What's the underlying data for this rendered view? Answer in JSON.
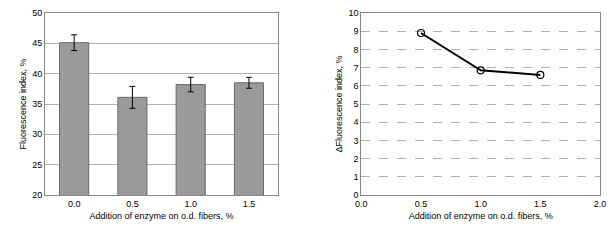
{
  "chart_data": [
    {
      "type": "bar",
      "x_label": "Addition of enzyme on o.d. fibers, %",
      "y_label": "Fluorescence index, %",
      "categories": [
        "0.0",
        "0.5",
        "1.0",
        "1.5"
      ],
      "values": [
        45.1,
        36.1,
        38.2,
        38.5
      ],
      "errors": [
        1.3,
        1.8,
        1.2,
        0.9
      ],
      "color": "#9a9a9a",
      "ylim": [
        20,
        50
      ],
      "yticks": [
        20,
        25,
        30,
        35,
        40,
        45,
        50
      ],
      "grid": true
    },
    {
      "type": "line",
      "x_label": "Addition of enzyme on o.d. fibers, %",
      "y_label": "ΔFluorescence index, %",
      "x": [
        0.5,
        1.0,
        1.5
      ],
      "values": [
        8.9,
        6.85,
        6.6
      ],
      "color": "#000000",
      "marker": "open circle",
      "line_style": "solid",
      "xlim": [
        0,
        2
      ],
      "xticks": [
        {
          "value": 0,
          "label": "0.0"
        },
        {
          "value": 0.5,
          "label": "0.5"
        },
        {
          "value": 1,
          "label": "1.0"
        },
        {
          "value": 1.5,
          "label": "1.5"
        },
        {
          "value": 2,
          "label": "2.0"
        }
      ],
      "ylim": [
        0,
        10
      ],
      "yticks": [
        0,
        1,
        2,
        3,
        4,
        5,
        6,
        7,
        8,
        9,
        10
      ],
      "grid": true
    }
  ]
}
